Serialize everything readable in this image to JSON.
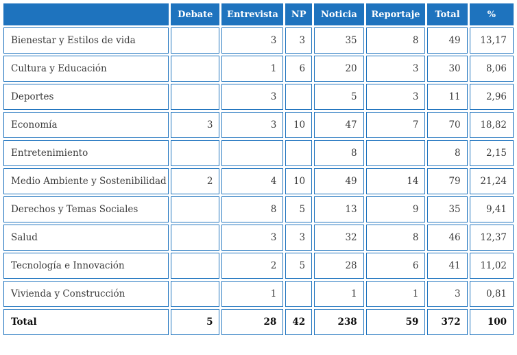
{
  "colors": {
    "accent_blue": "#1e73be",
    "header_text": "#ffffff",
    "body_text": "#3c3c3c"
  },
  "chart_data": {
    "type": "table",
    "title": "",
    "columns": [
      "",
      "Debate",
      "Entrevista",
      "NP",
      "Noticia",
      "Reportaje",
      "Total",
      "%"
    ],
    "rows": [
      [
        "Bienestar y Estilos de vida",
        "",
        "3",
        "3",
        "35",
        "8",
        "49",
        "13,17"
      ],
      [
        "Cultura y Educación",
        "",
        "1",
        "6",
        "20",
        "3",
        "30",
        "8,06"
      ],
      [
        "Deportes",
        "",
        "3",
        "",
        "5",
        "3",
        "11",
        "2,96"
      ],
      [
        "Economía",
        "3",
        "3",
        "10",
        "47",
        "7",
        "70",
        "18,82"
      ],
      [
        "Entretenimiento",
        "",
        "",
        "",
        "8",
        "",
        "8",
        "2,15"
      ],
      [
        "Medio Ambiente y Sostenibilidad",
        "2",
        "4",
        "10",
        "49",
        "14",
        "79",
        "21,24"
      ],
      [
        "Derechos y Temas Sociales",
        "",
        "8",
        "5",
        "13",
        "9",
        "35",
        "9,41"
      ],
      [
        "Salud",
        "",
        "3",
        "3",
        "32",
        "8",
        "46",
        "12,37"
      ],
      [
        "Tecnología e Innovación",
        "",
        "2",
        "5",
        "28",
        "6",
        "41",
        "11,02"
      ],
      [
        "Vivienda y Construcción",
        "",
        "1",
        "",
        "1",
        "1",
        "3",
        "0,81"
      ]
    ],
    "total_row": [
      "Total",
      "5",
      "28",
      "42",
      "238",
      "59",
      "372",
      "100"
    ],
    "layout": {
      "header_background": "#1e73be",
      "grid": "blue 1px cell borders with white 3px spacing",
      "numeric_alignment": "right",
      "category_alignment": "left"
    }
  }
}
